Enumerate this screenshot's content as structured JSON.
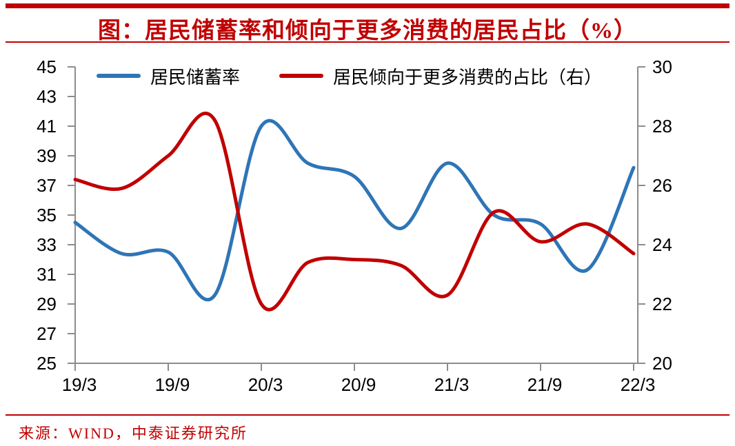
{
  "title": "图：居民储蓄率和倾向于更多消费的居民占比（%）",
  "source": "来源：WIND，中泰证券研究所",
  "colors": {
    "accent_red": "#C00000",
    "series_blue": "#2E75B6",
    "series_red": "#C00000",
    "axis_gray": "#8C8C8C",
    "label_black": "#000000"
  },
  "legend": [
    {
      "label": "居民储蓄率"
    },
    {
      "label": "居民倾向于更多消费的占比（右）"
    }
  ],
  "chart_data": {
    "type": "line",
    "smooth": true,
    "grid": false,
    "legend_position": "top",
    "x": [
      "19/3",
      "19/6",
      "19/9",
      "19/12",
      "20/3",
      "20/6",
      "20/9",
      "20/12",
      "21/3",
      "21/6",
      "21/9",
      "21/12",
      "22/3"
    ],
    "x_tick_labels": [
      "19/3",
      "19/9",
      "20/3",
      "20/9",
      "21/3",
      "21/9",
      "22/3"
    ],
    "series": [
      {
        "name": "居民储蓄率",
        "axis": "left",
        "color": "#2E75B6",
        "values": [
          34.5,
          32.4,
          32.5,
          29.6,
          41.0,
          38.5,
          37.6,
          34.1,
          38.5,
          35.0,
          34.4,
          31.3,
          38.2
        ]
      },
      {
        "name": "居民倾向于更多消费的占比（右）",
        "axis": "right",
        "color": "#C00000",
        "values": [
          26.2,
          25.9,
          27.0,
          28.2,
          22.0,
          23.4,
          23.5,
          23.3,
          22.3,
          25.1,
          24.1,
          24.7,
          23.7
        ]
      }
    ],
    "left_axis": {
      "min": 25,
      "max": 45,
      "step": 2,
      "ticks": [
        45,
        43,
        41,
        39,
        37,
        35,
        33,
        31,
        29,
        27,
        25
      ]
    },
    "right_axis": {
      "min": 20,
      "max": 30,
      "step": 2,
      "ticks": [
        30,
        28,
        26,
        24,
        22,
        20
      ]
    }
  }
}
